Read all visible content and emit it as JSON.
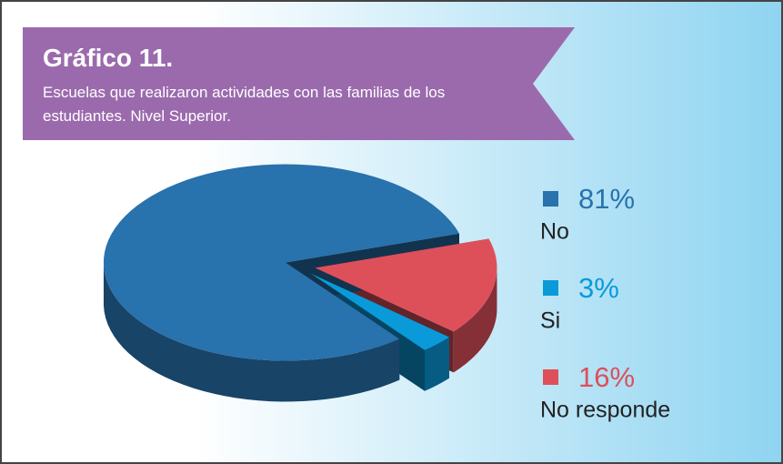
{
  "chart_data": {
    "type": "pie",
    "title": "Gráfico 11.",
    "subtitle": "Escuelas que realizaron actividades con las familias de los estudiantes. Nivel Superior.",
    "categories": [
      "No",
      "Si",
      "No responde"
    ],
    "values": [
      81,
      3,
      16
    ],
    "value_labels": [
      "81%",
      "3%",
      "16%"
    ],
    "colors": [
      "#2872ad",
      "#0a9ad9",
      "#dd505a"
    ]
  }
}
